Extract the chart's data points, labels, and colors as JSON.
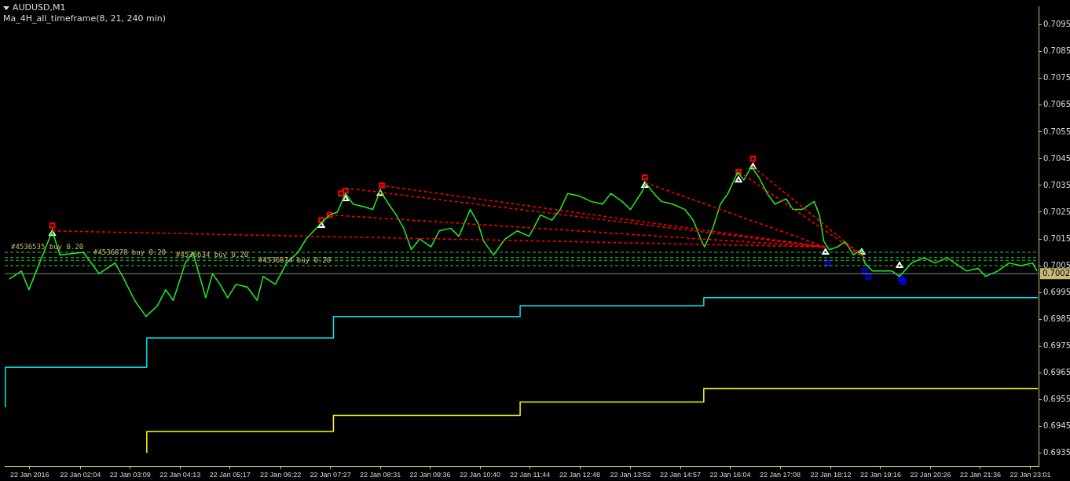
{
  "chart_data": {
    "type": "line",
    "title": "AUDUSD,M1",
    "subtitle": "Ma_4H_all_timeframe(8, 21, 240 min)",
    "xlim": [
      "2016-01-22T00:24",
      "2016-01-22T23:12"
    ],
    "xticks": [
      {
        "value": "2016-01-22T00:57",
        "label": "22 Jan 2016"
      },
      {
        "value": "2016-01-22T02:04",
        "label": "22 Jan 02:04"
      },
      {
        "value": "2016-01-22T03:10",
        "label": "22 Jan 03:09"
      },
      {
        "value": "2016-01-22T04:16",
        "label": "22 Jan 04:13"
      },
      {
        "value": "2016-01-22T05:22",
        "label": "22 Jan 05:17"
      },
      {
        "value": "2016-01-22T06:29",
        "label": "22 Jan 06:22"
      },
      {
        "value": "2016-01-22T07:35",
        "label": "22 Jan 07:27"
      },
      {
        "value": "2016-01-22T08:41",
        "label": "22 Jan 08:31"
      },
      {
        "value": "2016-01-22T09:47",
        "label": "22 Jan 09:36"
      },
      {
        "value": "2016-01-22T10:53",
        "label": "22 Jan 10:40"
      },
      {
        "value": "2016-01-22T11:59",
        "label": "22 Jan 11:44"
      },
      {
        "value": "2016-01-22T13:05",
        "label": "22 Jan 12:48"
      },
      {
        "value": "2016-01-22T14:12",
        "label": "22 Jan 13:52"
      },
      {
        "value": "2016-01-22T15:18",
        "label": "22 Jan 14:57"
      },
      {
        "value": "2016-01-22T16:24",
        "label": "22 Jan 16:04"
      },
      {
        "value": "2016-01-22T17:30",
        "label": "22 Jan 17:08"
      },
      {
        "value": "2016-01-22T18:37",
        "label": "22 Jan 18:12"
      },
      {
        "value": "2016-01-22T19:43",
        "label": "22 Jan 19:16"
      },
      {
        "value": "2016-01-22T20:49",
        "label": "22 Jan 20:26"
      },
      {
        "value": "2016-01-22T21:55",
        "label": "22 Jan 21:36"
      },
      {
        "value": "2016-01-22T23:01",
        "label": "22 Jan 23:01"
      }
    ],
    "ylim": [
      0.693,
      0.7102
    ],
    "yticks": [
      0.6935,
      0.6945,
      0.6955,
      0.6965,
      0.6975,
      0.6985,
      0.6995,
      0.7005,
      0.7015,
      0.7025,
      0.7035,
      0.7045,
      0.7055,
      0.7065,
      0.7075,
      0.7085,
      0.7095
    ],
    "grid": false,
    "legend": false,
    "series": [
      {
        "color": "#ff0000",
        "line_style": "dashed",
        "marker": "none",
        "x": [
          "2016-01-22T01:27",
          "2016-01-22T18:30"
        ],
        "values": [
          0.7018,
          0.7012
        ]
      },
      {
        "color": "#ff0000",
        "line_style": "dashed",
        "marker": "none",
        "x": [
          "2016-01-22T07:34",
          "2016-01-22T18:30"
        ],
        "values": [
          0.7024,
          0.7012
        ]
      },
      {
        "color": "#ff0000",
        "line_style": "dashed",
        "marker": "none",
        "x": [
          "2016-01-22T07:55",
          "2016-01-22T18:30"
        ],
        "values": [
          0.7034,
          0.7012
        ]
      },
      {
        "color": "#ff0000",
        "line_style": "dashed",
        "marker": "none",
        "x": [
          "2016-01-22T08:41",
          "2016-01-22T18:30"
        ],
        "values": [
          0.7035,
          0.7012
        ]
      },
      {
        "color": "#ff0000",
        "line_style": "dashed",
        "marker": "none",
        "x": [
          "2016-01-22T14:32",
          "2016-01-22T18:30"
        ],
        "values": [
          0.7036,
          0.7012
        ]
      },
      {
        "color": "#ff0000",
        "line_style": "dashed",
        "marker": "none",
        "x": [
          "2016-01-22T16:36",
          "2016-01-22T19:22"
        ],
        "values": [
          0.704,
          0.7008
        ]
      },
      {
        "color": "#ff0000",
        "line_style": "dashed",
        "marker": "none",
        "x": [
          "2016-01-22T16:54",
          "2016-01-22T19:22"
        ],
        "values": [
          0.7042,
          0.7008
        ]
      },
      {
        "color": "#22ee22",
        "marker": "none",
        "x": [
          "2016-01-22T00:30",
          "2016-01-22T00:46",
          "2016-01-22T00:56",
          "2016-01-22T01:27",
          "2016-01-22T01:37",
          "2016-01-22T02:08",
          "2016-01-22T02:29",
          "2016-01-22T02:50",
          "2016-01-22T03:00",
          "2016-01-22T03:16",
          "2016-01-22T03:31",
          "2016-01-22T03:46",
          "2016-01-22T03:57",
          "2016-01-22T04:07",
          "2016-01-22T04:23",
          "2016-01-22T04:33",
          "2016-01-22T04:43",
          "2016-01-22T04:50",
          "2016-01-22T04:59",
          "2016-01-22T05:09",
          "2016-01-22T05:19",
          "2016-01-22T05:30",
          "2016-01-22T05:45",
          "2016-01-22T05:58",
          "2016-01-22T06:06",
          "2016-01-22T06:22",
          "2016-01-22T06:37",
          "2016-01-22T06:52",
          "2016-01-22T07:03",
          "2016-01-22T07:13",
          "2016-01-22T07:23",
          "2016-01-22T07:34",
          "2016-01-22T07:44",
          "2016-01-22T07:55",
          "2016-01-22T08:05",
          "2016-01-22T08:20",
          "2016-01-22T08:31",
          "2016-01-22T08:41",
          "2016-01-22T08:52",
          "2016-01-22T09:02",
          "2016-01-22T09:12",
          "2016-01-22T09:22",
          "2016-01-22T09:33",
          "2016-01-22T09:48",
          "2016-01-22T09:59",
          "2016-01-22T10:14",
          "2016-01-22T10:25",
          "2016-01-22T10:40",
          "2016-01-22T10:50",
          "2016-01-22T10:58",
          "2016-01-22T11:11",
          "2016-01-22T11:26",
          "2016-01-22T11:42",
          "2016-01-22T11:58",
          "2016-01-22T12:13",
          "2016-01-22T12:28",
          "2016-01-22T12:39",
          "2016-01-22T12:49",
          "2016-01-22T13:05",
          "2016-01-22T13:20",
          "2016-01-22T13:35",
          "2016-01-22T13:46",
          "2016-01-22T14:01",
          "2016-01-22T14:12",
          "2016-01-22T14:28",
          "2016-01-22T14:32",
          "2016-01-22T14:43",
          "2016-01-22T14:53",
          "2016-01-22T15:08",
          "2016-01-22T15:24",
          "2016-01-22T15:35",
          "2016-01-22T15:45",
          "2016-01-22T15:50",
          "2016-01-22T16:01",
          "2016-01-22T16:11",
          "2016-01-22T16:21",
          "2016-01-22T16:34",
          "2016-01-22T16:42",
          "2016-01-22T16:52",
          "2016-01-22T17:02",
          "2016-01-22T17:13",
          "2016-01-22T17:23",
          "2016-01-22T17:38",
          "2016-01-22T17:47",
          "2016-01-22T17:59",
          "2016-01-22T18:15",
          "2016-01-22T18:22",
          "2016-01-22T18:28",
          "2016-01-22T18:35",
          "2016-01-22T18:46",
          "2016-01-22T18:56",
          "2016-01-22T19:07",
          "2016-01-22T19:17",
          "2016-01-22T19:22",
          "2016-01-22T19:32",
          "2016-01-22T19:48",
          "2016-01-22T19:58",
          "2016-01-22T20:08",
          "2016-01-22T20:24",
          "2016-01-22T20:40",
          "2016-01-22T20:55",
          "2016-01-22T21:11",
          "2016-01-22T21:21",
          "2016-01-22T21:37",
          "2016-01-22T21:52",
          "2016-01-22T22:02",
          "2016-01-22T22:18",
          "2016-01-22T22:33",
          "2016-01-22T22:49",
          "2016-01-22T23:04",
          "2016-01-22T23:10"
        ],
        "values": [
          0.7,
          0.7003,
          0.6996,
          0.7018,
          0.7009,
          0.701,
          0.7002,
          0.7006,
          0.7001,
          0.6992,
          0.6986,
          0.699,
          0.6996,
          0.6992,
          0.7006,
          0.701,
          0.7,
          0.6993,
          0.7002,
          0.6998,
          0.6993,
          0.6998,
          0.6997,
          0.6992,
          0.7001,
          0.6998,
          0.7006,
          0.701,
          0.7015,
          0.7018,
          0.7021,
          0.7024,
          0.7025,
          0.7032,
          0.7028,
          0.7027,
          0.7026,
          0.7033,
          0.7028,
          0.7024,
          0.7019,
          0.7011,
          0.7015,
          0.7012,
          0.7018,
          0.7019,
          0.7016,
          0.7026,
          0.7021,
          0.7014,
          0.7009,
          0.7015,
          0.7018,
          0.7016,
          0.7024,
          0.7022,
          0.7026,
          0.7032,
          0.7031,
          0.7029,
          0.7028,
          0.7032,
          0.7029,
          0.7026,
          0.7033,
          0.7036,
          0.7032,
          0.7029,
          0.7028,
          0.7026,
          0.7022,
          0.7015,
          0.7012,
          0.7019,
          0.7028,
          0.7032,
          0.704,
          0.7037,
          0.7042,
          0.7038,
          0.7032,
          0.7028,
          0.703,
          0.7026,
          0.7026,
          0.7029,
          0.7024,
          0.7014,
          0.7011,
          0.7012,
          0.7014,
          0.7009,
          0.7011,
          0.7006,
          0.7003,
          0.7003,
          0.7003,
          0.7001,
          0.7006,
          0.7008,
          0.7006,
          0.7008,
          0.7006,
          0.7003,
          0.7004,
          0.7001,
          0.7003,
          0.7006,
          0.7005,
          0.7006,
          0.7003
        ]
      },
      {
        "type": "step",
        "color": "#00e5ee",
        "marker": "none",
        "x": [
          "2016-01-22T00:25",
          "2016-01-22T03:32",
          "2016-01-22T07:39",
          "2016-01-22T11:46",
          "2016-01-22T15:49",
          "2016-01-22T19:57",
          "2016-01-22T23:11"
        ],
        "values": [
          0.6952,
          0.6967,
          0.6978,
          0.6986,
          0.699,
          0.6993,
          0.6993
        ]
      },
      {
        "type": "step",
        "color": "#ffff00",
        "marker": "none",
        "x": [
          "2016-01-22T03:32",
          "2016-01-22T07:39",
          "2016-01-22T11:46",
          "2016-01-22T15:49",
          "2016-01-22T19:57",
          "2016-01-22T23:11"
        ],
        "values": [
          0.6935,
          0.6943,
          0.6949,
          0.6954,
          0.6959,
          0.6959
        ]
      },
      {
        "type": "scatter",
        "color": "#ff0000",
        "marker": "square",
        "x": [
          "2016-01-22T01:27",
          "2016-01-22T07:23",
          "2016-01-22T07:34",
          "2016-01-22T07:49",
          "2016-01-22T07:55",
          "2016-01-22T08:43",
          "2016-01-22T14:31",
          "2016-01-22T16:35",
          "2016-01-22T16:54"
        ],
        "values": [
          0.702,
          0.7022,
          0.7024,
          0.7032,
          0.7033,
          0.7035,
          0.7038,
          0.704,
          0.7045
        ]
      },
      {
        "type": "scatter",
        "color": "#ffffff",
        "marker": "triangle",
        "x": [
          "2016-01-22T01:27",
          "2016-01-22T07:23",
          "2016-01-22T07:55",
          "2016-01-22T08:41",
          "2016-01-22T14:31",
          "2016-01-22T16:35",
          "2016-01-22T16:54",
          "2016-01-22T18:30",
          "2016-01-22T19:18",
          "2016-01-22T20:08"
        ],
        "values": [
          0.7017,
          0.702,
          0.703,
          0.7032,
          0.7035,
          0.7037,
          0.7042,
          0.701,
          0.701,
          0.7005
        ]
      },
      {
        "type": "scatter",
        "color": "#0000ff",
        "marker": "square",
        "x": [
          "2016-01-22T18:33",
          "2016-01-22T19:22",
          "2016-01-22T19:27",
          "2016-01-22T20:10",
          "2016-01-22T20:13"
        ],
        "values": [
          0.7006,
          0.7003,
          0.7001,
          0.7,
          0.6999
        ]
      }
    ],
    "ref_lines": [
      {
        "axis": "y",
        "value": 0.701,
        "label": "#4536535 buy 0.20",
        "color": "#33cc33",
        "line_style": "dashed"
      },
      {
        "axis": "y",
        "value": 0.7008,
        "label": "#4536878 buy 0.20",
        "color": "#33cc33",
        "line_style": "dashed"
      },
      {
        "axis": "y",
        "value": 0.7007,
        "label": "#4536634 buy 0.20",
        "color": "#33cc33",
        "line_style": "dashed"
      },
      {
        "axis": "y",
        "value": 0.7005,
        "label": "#4536874 buy 0.20",
        "color": "#33cc33",
        "line_style": "dashed"
      },
      {
        "axis": "y",
        "value": 0.7002,
        "label": "0.7002",
        "color": "#7f8f8f",
        "line_style": "solid"
      }
    ]
  }
}
